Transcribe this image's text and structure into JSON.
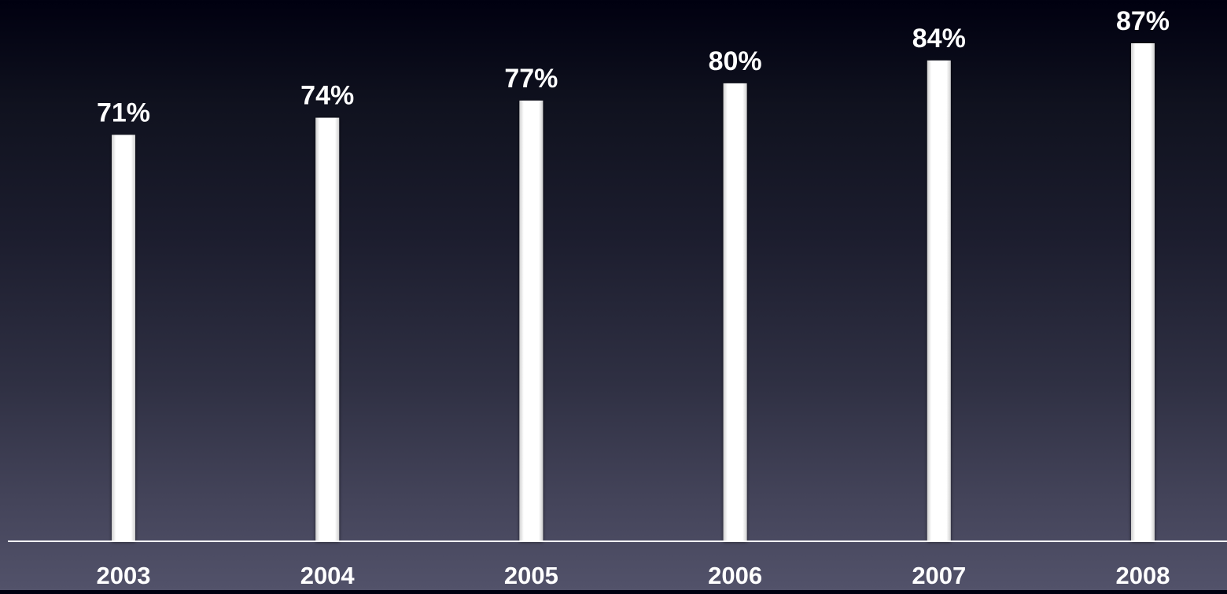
{
  "chart_data": {
    "type": "bar",
    "categories": [
      "2003",
      "2004",
      "2005",
      "2006",
      "2007",
      "2008"
    ],
    "values": [
      71,
      74,
      77,
      80,
      84,
      87
    ],
    "value_labels": [
      "71%",
      "74%",
      "77%",
      "80%",
      "84%",
      "87%"
    ],
    "title": "",
    "xlabel": "",
    "ylabel": "",
    "ylim": [
      0,
      87
    ],
    "grid": false,
    "legend": "none",
    "bar_color": "#ffffff",
    "label_color": "#ffffff",
    "axis_color": "#ffffff"
  }
}
